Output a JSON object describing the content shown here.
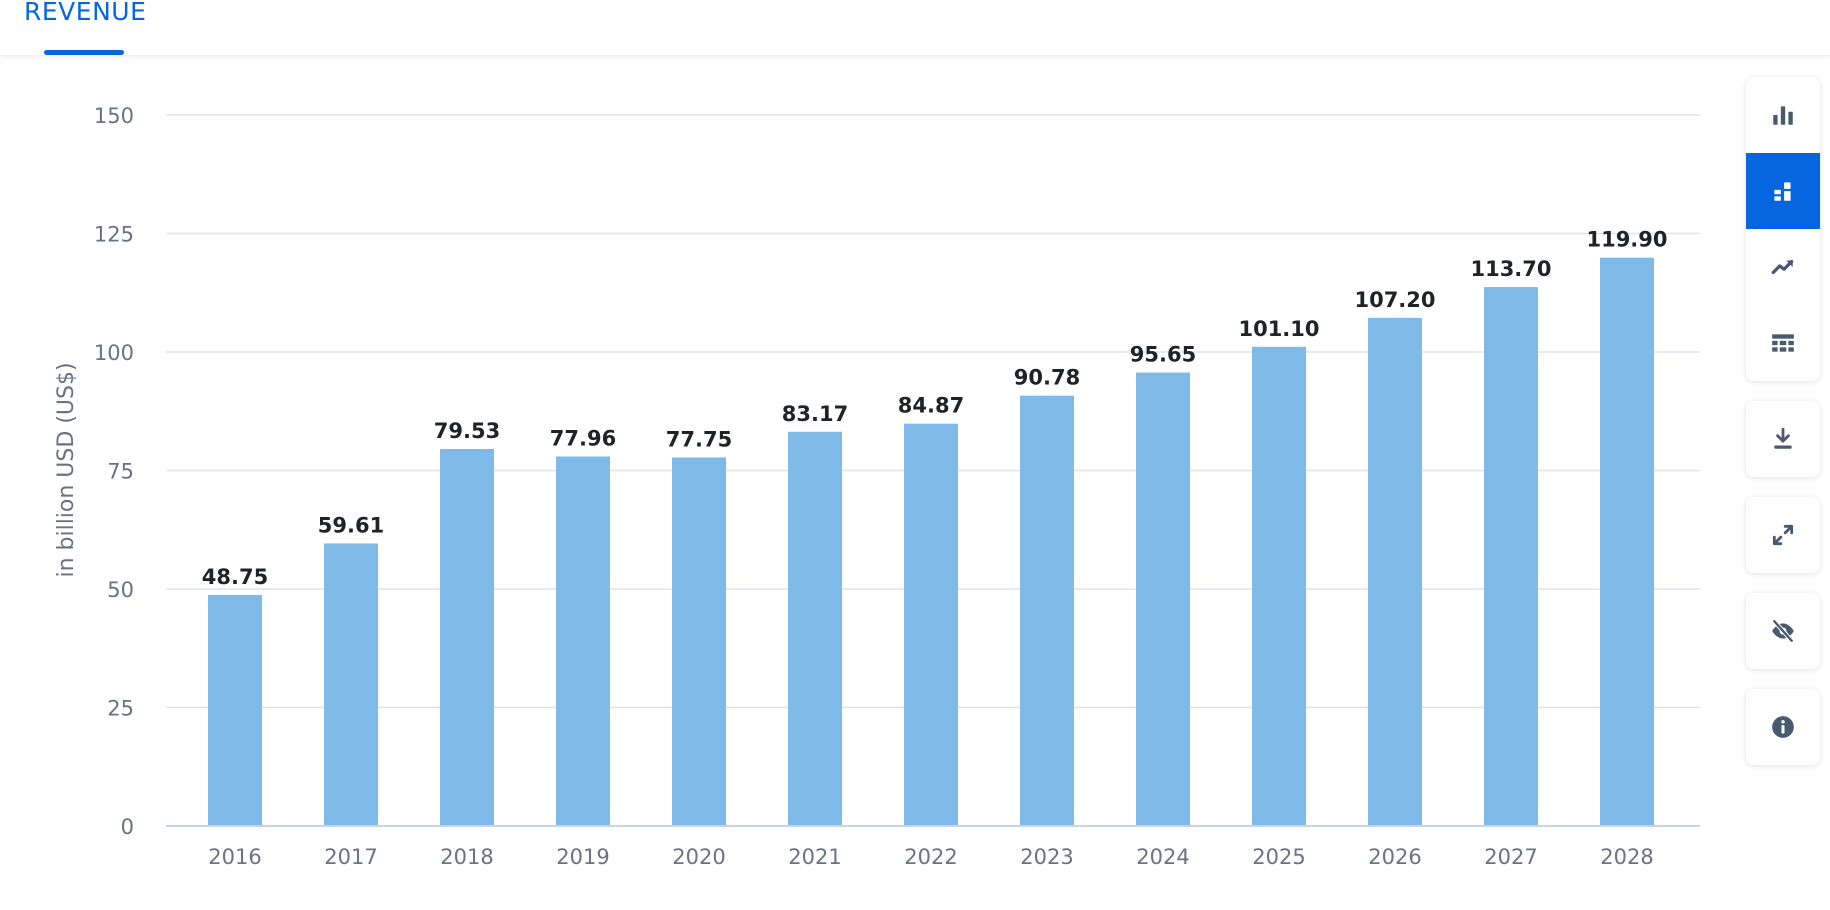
{
  "tabs": [
    {
      "label": "REVENUE",
      "active": true
    }
  ],
  "colors": {
    "accent": "#0666e0",
    "bar": "#7fb9e8",
    "grid": "#dfe3e8",
    "icon": "#4a5a6e"
  },
  "toolbar": [
    {
      "icon": "bar-chart-icon",
      "active": false
    },
    {
      "icon": "stacked-chart-icon",
      "active": true
    },
    {
      "icon": "trend-line-icon",
      "active": false
    },
    {
      "icon": "table-icon",
      "active": false
    },
    {
      "icon": "download-icon",
      "active": false
    },
    {
      "icon": "fullscreen-icon",
      "active": false
    },
    {
      "icon": "hide-icon",
      "active": false
    },
    {
      "icon": "info-icon",
      "active": false
    }
  ],
  "chart_data": {
    "type": "bar",
    "categories": [
      "2016",
      "2017",
      "2018",
      "2019",
      "2020",
      "2021",
      "2022",
      "2023",
      "2024",
      "2025",
      "2026",
      "2027",
      "2028"
    ],
    "values": [
      48.75,
      59.61,
      79.53,
      77.96,
      77.75,
      83.17,
      84.87,
      90.78,
      95.65,
      101.1,
      107.2,
      113.7,
      119.9
    ],
    "value_labels": [
      "48.75",
      "59.61",
      "79.53",
      "77.96",
      "77.75",
      "83.17",
      "84.87",
      "90.78",
      "95.65",
      "101.10",
      "107.20",
      "113.70",
      "119.90"
    ],
    "ylabel": "in billion USD (US$)",
    "xlabel": "",
    "yticks": [
      0,
      25,
      50,
      75,
      100,
      125,
      150
    ],
    "ylim": [
      0,
      150
    ],
    "grid": true,
    "legend": "none"
  }
}
